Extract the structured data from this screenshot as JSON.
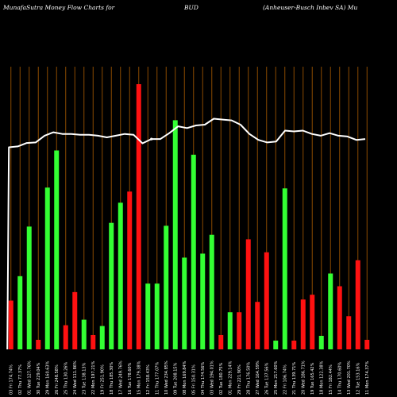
{
  "header": {
    "left": "MunafaSutra  Money Flow  Charts for",
    "middle": "BUD",
    "right": "(Anheuser-Busch Inbev   SA) Mu"
  },
  "colors": {
    "background": "#000000",
    "grid": "#8B4A00",
    "buy": "#33ff33",
    "sell": "#ff1111",
    "line": "#ffffff"
  },
  "chart_data": {
    "type": "bar",
    "title": "MunafaSutra  Money Flow  Charts for BUD (Anheuser-Busch Inbev SA) Mu",
    "grid": true,
    "ylim": [
      0,
      100
    ],
    "categories": [
      "03 Fri 174.74%",
      "02 Thu 77.37%",
      "01 Wed 127.76%",
      "30 Tue 229.04%",
      "29 Mon 160.63%",
      "26 Fri 248.58%",
      "25 Thu 130.26%",
      "24 Wed 111.86%",
      "23 Tue 138.13%",
      "22 Mon 197.21%",
      "19 Fri 251.90%",
      "18 Thu 185.30%",
      "17 Wed 249.76%",
      "16 Tue 178.60%",
      "15 Mon 179.38%",
      "12 Fri 158.43%",
      "11 Thu 177.07%",
      "10 Wed 234.85%",
      "09 Tue 208.15%",
      "08 Mon 169.84%",
      "05 Fri 150.31%",
      "04 Thu 174.56%",
      "03 Wed 194.01%",
      "02 Tue 180.75%",
      "01 Mon 229.14%",
      "29 Fri 221.90%",
      "28 Thu 176.50%",
      "27 Wed 164.59%",
      "26 Tue 137.56%",
      "25 Mon 217.60%",
      "22 Fri 106.74%",
      "21 Thu 139.71%",
      "20 Wed 186.71%",
      "19 Tue 165.42%",
      "18 Mon 122.38%",
      "15 Fri 182.44%",
      "14 Thu 170.60%",
      "13 Wed 201.70%",
      "12 Tue 153.16%",
      "11 Mon 174.37%"
    ],
    "bars": [
      {
        "value": 18.4,
        "dir": "sell"
      },
      {
        "value": 27.6,
        "dir": "buy"
      },
      {
        "value": 46.3,
        "dir": "buy"
      },
      {
        "value": 3.6,
        "dir": "sell"
      },
      {
        "value": 61.0,
        "dir": "buy"
      },
      {
        "value": 75.0,
        "dir": "buy"
      },
      {
        "value": 9.1,
        "dir": "sell"
      },
      {
        "value": 21.6,
        "dir": "sell"
      },
      {
        "value": 11.2,
        "dir": "buy"
      },
      {
        "value": 5.4,
        "dir": "sell"
      },
      {
        "value": 8.8,
        "dir": "buy"
      },
      {
        "value": 47.7,
        "dir": "buy"
      },
      {
        "value": 55.3,
        "dir": "buy"
      },
      {
        "value": 59.5,
        "dir": "sell"
      },
      {
        "value": 100.0,
        "dir": "sell"
      },
      {
        "value": 24.8,
        "dir": "buy"
      },
      {
        "value": 24.8,
        "dir": "buy"
      },
      {
        "value": 46.6,
        "dir": "buy"
      },
      {
        "value": 86.4,
        "dir": "buy"
      },
      {
        "value": 34.6,
        "dir": "buy"
      },
      {
        "value": 73.4,
        "dir": "buy"
      },
      {
        "value": 36.1,
        "dir": "buy"
      },
      {
        "value": 43.2,
        "dir": "buy"
      },
      {
        "value": 5.4,
        "dir": "sell"
      },
      {
        "value": 14.0,
        "dir": "buy"
      },
      {
        "value": 14.0,
        "dir": "sell"
      },
      {
        "value": 41.5,
        "dir": "sell"
      },
      {
        "value": 17.9,
        "dir": "sell"
      },
      {
        "value": 36.6,
        "dir": "sell"
      },
      {
        "value": 3.3,
        "dir": "buy"
      },
      {
        "value": 60.7,
        "dir": "buy"
      },
      {
        "value": 3.3,
        "dir": "sell"
      },
      {
        "value": 18.8,
        "dir": "sell"
      },
      {
        "value": 20.6,
        "dir": "sell"
      },
      {
        "value": 5.1,
        "dir": "buy"
      },
      {
        "value": 28.6,
        "dir": "buy"
      },
      {
        "value": 23.8,
        "dir": "sell"
      },
      {
        "value": 12.5,
        "dir": "sell"
      },
      {
        "value": 33.6,
        "dir": "sell"
      },
      {
        "value": 3.6,
        "dir": "sell"
      }
    ],
    "price_line": [
      0,
      71.5,
      71.8,
      73.0,
      73.2,
      75.6,
      76.8,
      76.2,
      76.2,
      75.9,
      75.9,
      75.6,
      75.0,
      75.6,
      76.2,
      75.9,
      72.9,
      74.4,
      74.4,
      76.5,
      78.9,
      78.3,
      79.2,
      79.5,
      81.6,
      81.3,
      81.0,
      79.5,
      76.2,
      74.1,
      73.2,
      73.5,
      77.4,
      77.1,
      77.4,
      76.2,
      75.6,
      76.5,
      75.6,
      75.3,
      74.1,
      74.4
    ],
    "price_line_dot": 17
  }
}
